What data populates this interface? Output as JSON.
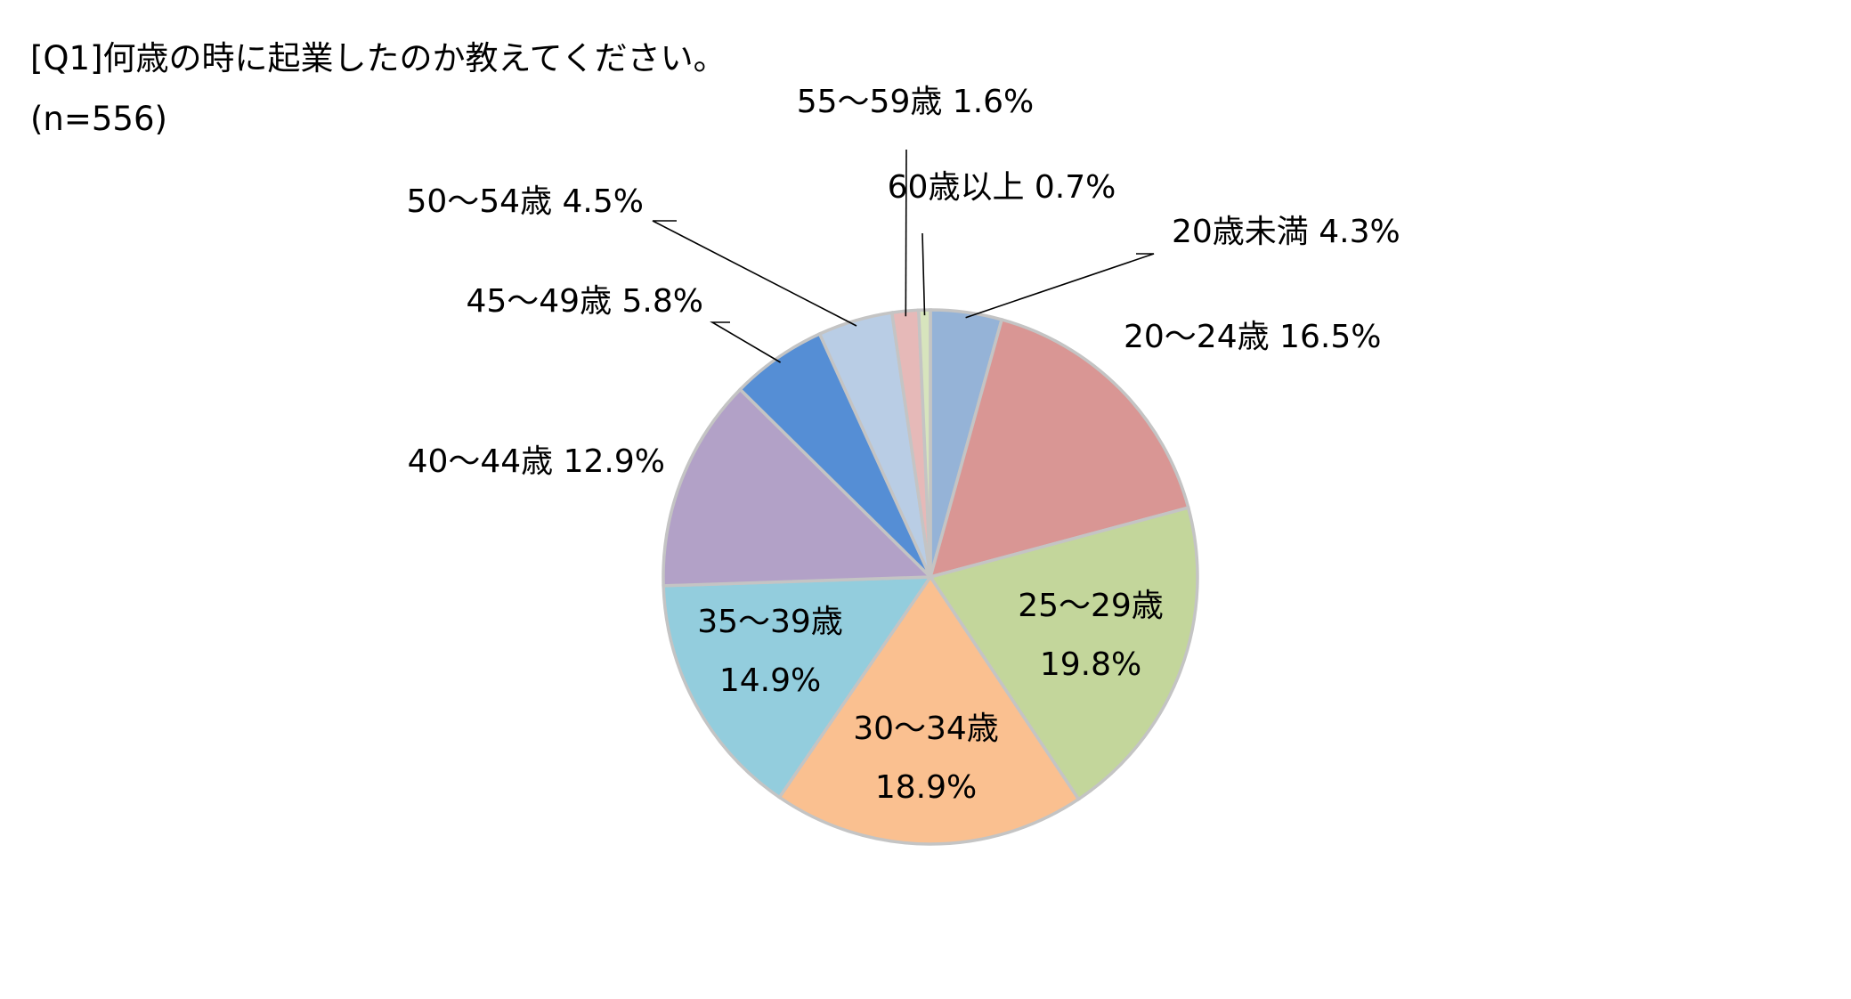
{
  "title": "[Q1]何歳の時に起業したのか教えてください。",
  "subtitle": "(n=556)",
  "chart_data": {
    "type": "pie",
    "title": "[Q1]何歳の時に起業したのか教えてください。",
    "subtitle": "(n=556)",
    "unit": "%",
    "start": "12 o'clock",
    "direction": "clockwise",
    "slices": [
      {
        "label": "20歳未満",
        "value": 4.3,
        "value_text": "4.3%",
        "color": "#95b3d7"
      },
      {
        "label": "20〜24歳",
        "value": 16.5,
        "value_text": "16.5%",
        "color": "#d99694"
      },
      {
        "label": "25〜29歳",
        "value": 19.8,
        "value_text": "19.8%",
        "color": "#c3d69b"
      },
      {
        "label": "30〜34歳",
        "value": 18.9,
        "value_text": "18.9%",
        "color": "#fac090"
      },
      {
        "label": "35〜39歳",
        "value": 14.9,
        "value_text": "14.9%",
        "color": "#93cddd"
      },
      {
        "label": "40〜44歳",
        "value": 12.9,
        "value_text": "12.9%",
        "color": "#b2a1c7"
      },
      {
        "label": "45〜49歳",
        "value": 5.8,
        "value_text": "5.8%",
        "color": "#558ed5"
      },
      {
        "label": "50〜54歳",
        "value": 4.5,
        "value_text": "4.5%",
        "color": "#b9cde5"
      },
      {
        "label": "55〜59歳",
        "value": 1.6,
        "value_text": "1.6%",
        "color": "#e6b9b8"
      },
      {
        "label": "60歳以上",
        "value": 0.7,
        "value_text": "0.7%",
        "color": "#d7e4bd"
      }
    ]
  }
}
